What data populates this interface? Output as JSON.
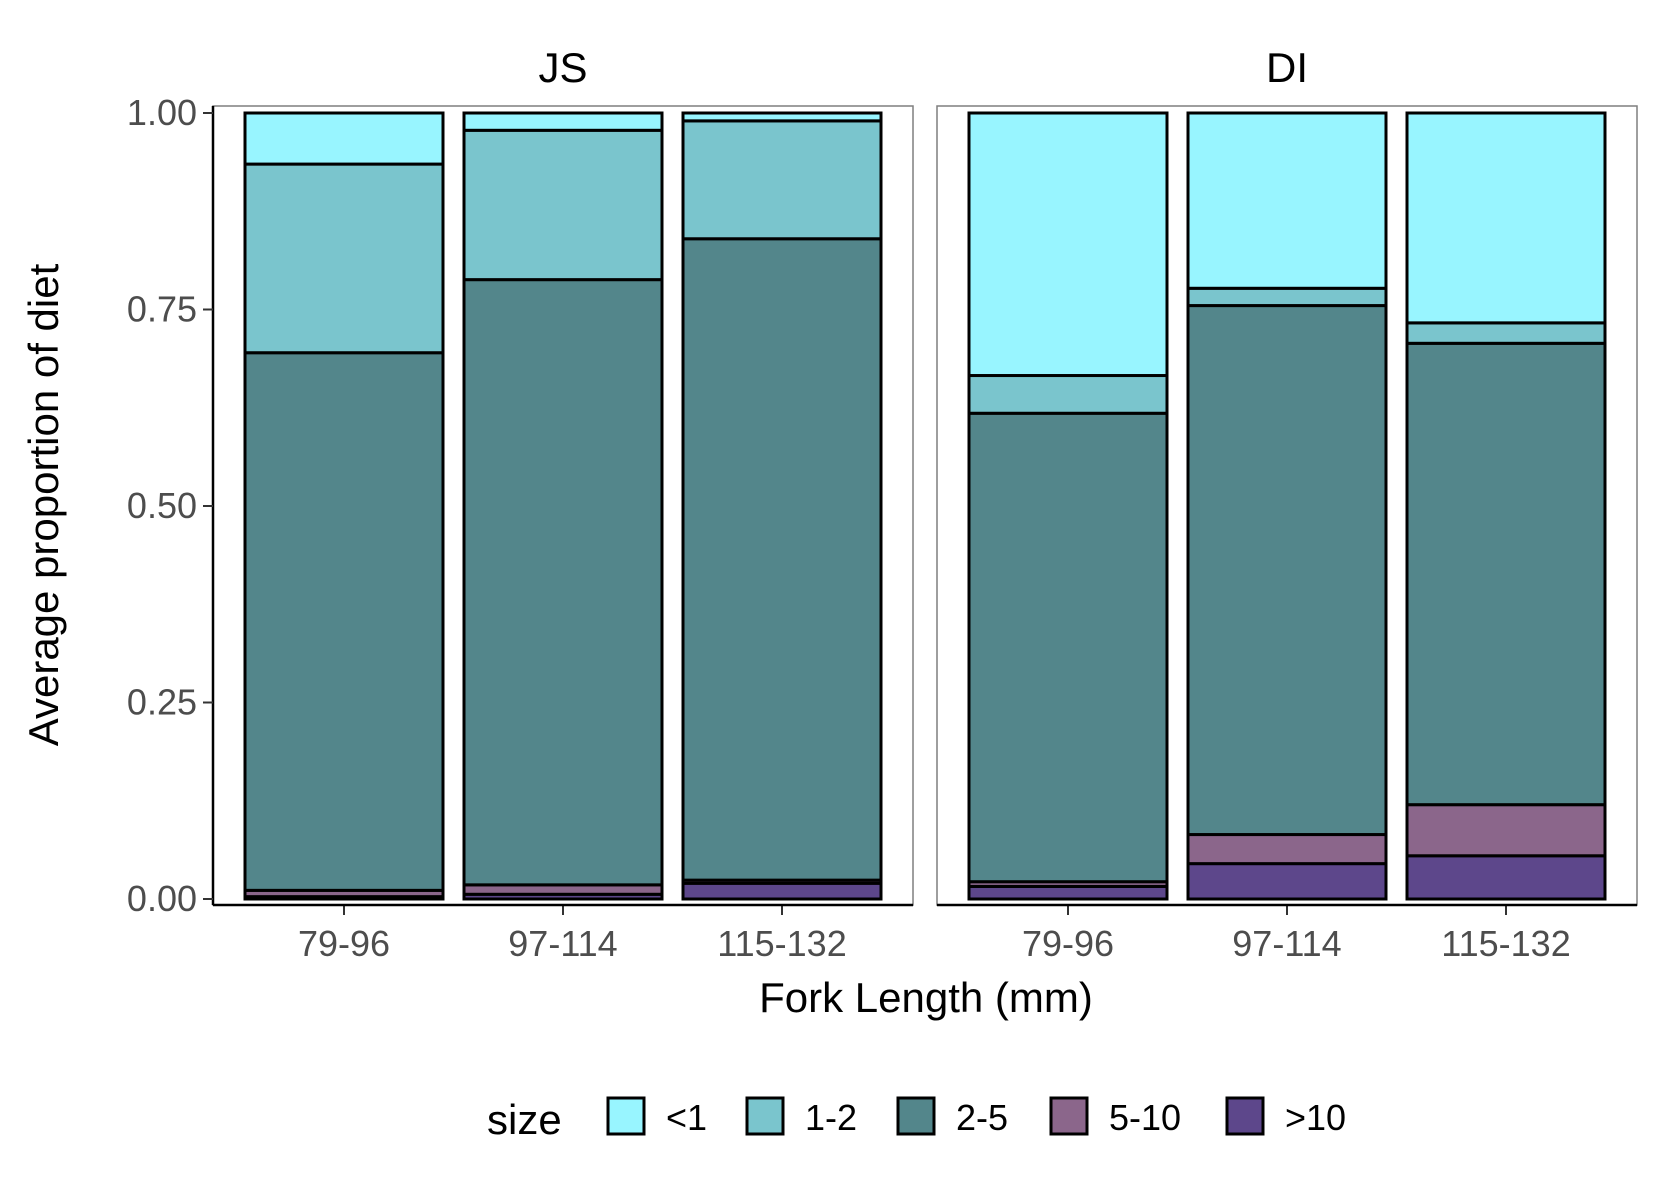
{
  "chart_data": {
    "type": "bar",
    "stacked": true,
    "xlabel": "Fork Length (mm)",
    "ylabel": "Average proportion of diet",
    "ylim": [
      0,
      1
    ],
    "yticks": [
      "0.00",
      "0.25",
      "0.50",
      "0.75",
      "1.00"
    ],
    "categories": [
      "79-96",
      "97-114",
      "115-132"
    ],
    "legend": {
      "title": "size",
      "position": "bottom",
      "items": [
        {
          "label": "<1",
          "color": "#98F5FF"
        },
        {
          "label": "1-2",
          "color": "#7AC5CD"
        },
        {
          "label": "2-5",
          "color": "#53868B"
        },
        {
          "label": "5-10",
          "color": "#8B668B"
        },
        {
          "label": ">10",
          "color": "#5D478B"
        }
      ]
    },
    "panels": [
      {
        "name": "JS",
        "series": [
          {
            "name": ">10",
            "values": [
              0.003,
              0.006,
              0.02
            ]
          },
          {
            "name": "5-10",
            "values": [
              0.008,
              0.012,
              0.004
            ]
          },
          {
            "name": "2-5",
            "values": [
              0.684,
              0.77,
              0.816
            ]
          },
          {
            "name": "1-2",
            "values": [
              0.24,
              0.19,
              0.15
            ]
          },
          {
            "name": "<1",
            "values": [
              0.065,
              0.022,
              0.01
            ]
          }
        ]
      },
      {
        "name": "DI",
        "series": [
          {
            "name": ">10",
            "values": [
              0.016,
              0.045,
              0.055
            ]
          },
          {
            "name": "5-10",
            "values": [
              0.006,
              0.037,
              0.065
            ]
          },
          {
            "name": "2-5",
            "values": [
              0.596,
              0.673,
              0.587
            ]
          },
          {
            "name": "1-2",
            "values": [
              0.048,
              0.022,
              0.026
            ]
          },
          {
            "name": "<1",
            "values": [
              0.334,
              0.223,
              0.267
            ]
          }
        ]
      }
    ]
  }
}
